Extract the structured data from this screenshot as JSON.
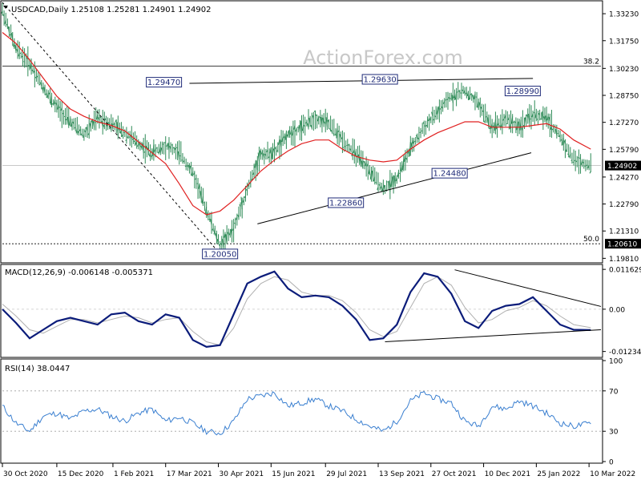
{
  "chart_data": [
    {
      "type": "line",
      "subtype": "ohlc-bars",
      "panel": "price",
      "symbol": "USDCAD",
      "timeframe": "Daily",
      "header_ohlc": [
        "1.25108",
        "1.25281",
        "1.24901",
        "1.24902"
      ],
      "title": "USDCAD,Daily 1.25108 1.25281 1.24901 1.24902",
      "watermark": "ActionForex.com",
      "ylim": [
        1.1965,
        1.3385
      ],
      "y_ticks": [
        "1.33230",
        "1.31750",
        "1.30230",
        "1.28750",
        "1.27270",
        "1.25790",
        "1.24270",
        "1.22790",
        "1.21310",
        "1.19810"
      ],
      "x_ticks": [
        "30 Oct 2020",
        "15 Dec 2020",
        "1 Feb 2021",
        "17 Mar 2021",
        "30 Apr 2021",
        "15 Jun 2021",
        "29 Jul 2021",
        "13 Sep 2021",
        "27 Oct 2021",
        "10 Dec 2021",
        "25 Jan 2022",
        "10 Mar 2022"
      ],
      "last_price": "1.24902",
      "level_label": "1.20610",
      "series": [
        {
          "name": "",
          "x": [
            0,
            8,
            16,
            24,
            32,
            40,
            48,
            56,
            64,
            72,
            80,
            88,
            96,
            104,
            112,
            120,
            128,
            136,
            144,
            152,
            160,
            168,
            176,
            184,
            192,
            200,
            208,
            216,
            224,
            232,
            240,
            248,
            256,
            264,
            272,
            280,
            288,
            296,
            304,
            312,
            320,
            328,
            336,
            346
          ],
          "values": [
            1.334,
            1.313,
            1.305,
            1.292,
            1.281,
            1.273,
            1.266,
            1.275,
            1.272,
            1.267,
            1.261,
            1.256,
            1.26,
            1.256,
            1.245,
            1.225,
            1.205,
            1.214,
            1.236,
            1.255,
            1.256,
            1.266,
            1.27,
            1.275,
            1.272,
            1.263,
            1.255,
            1.246,
            1.236,
            1.242,
            1.258,
            1.27,
            1.278,
            1.287,
            1.29,
            1.283,
            1.27,
            1.275,
            1.27,
            1.277,
            1.275,
            1.265,
            1.252,
            1.249
          ]
        },
        {
          "name": "",
          "x": [
            0,
            8,
            16,
            24,
            32,
            40,
            48,
            56,
            64,
            72,
            80,
            88,
            96,
            104,
            112,
            120,
            128,
            136,
            144,
            152,
            160,
            168,
            176,
            184,
            192,
            200,
            208,
            216,
            224,
            232,
            240,
            248,
            256,
            264,
            272,
            280,
            288,
            296,
            304,
            312,
            320,
            328,
            336,
            346
          ],
          "values": [
            1.322,
            1.316,
            1.307,
            1.297,
            1.287,
            1.28,
            1.276,
            1.273,
            1.271,
            1.268,
            1.262,
            1.256,
            1.25,
            1.239,
            1.227,
            1.222,
            1.224,
            1.23,
            1.238,
            1.246,
            1.252,
            1.257,
            1.261,
            1.263,
            1.263,
            1.258,
            1.254,
            1.252,
            1.251,
            1.252,
            1.258,
            1.263,
            1.267,
            1.27,
            1.273,
            1.273,
            1.27,
            1.27,
            1.27,
            1.271,
            1.272,
            1.269,
            1.263,
            1.258
          ]
        }
      ],
      "annotations": [
        {
          "text": "1.29470",
          "x": 95,
          "y": 1.2947
        },
        {
          "text": "1.29630",
          "x": 222,
          "y": 1.2963
        },
        {
          "text": "1.28990",
          "x": 306,
          "y": 1.2899
        },
        {
          "text": "1.24480",
          "x": 263,
          "y": 1.2448
        },
        {
          "text": "1.22860",
          "x": 202,
          "y": 1.2286
        },
        {
          "text": "1.20050",
          "x": 128,
          "y": 1.2005
        },
        {
          "text": "38.2",
          "y": 1.3035
        },
        {
          "text": "50.0",
          "y": 1.2061
        }
      ],
      "trendlines": [
        {
          "x": [
            0,
            128
          ],
          "y": [
            1.3385,
            1.2005
          ],
          "style": "dashed"
        },
        {
          "x": [
            110,
            312
          ],
          "y": [
            1.2941,
            1.2968
          ],
          "style": "solid"
        },
        {
          "x": [
            150,
            311
          ],
          "y": [
            1.217,
            1.256
          ],
          "style": "solid"
        }
      ],
      "horizontal_lines": [
        1.3035,
        1.2061,
        1.249
      ],
      "grid": false,
      "legend": "none"
    },
    {
      "type": "line",
      "panel": "macd",
      "title": "MACD(12,26,9) -0.006148 -0.005371",
      "ylim": [
        -0.0136,
        0.0126
      ],
      "y_ticks": [
        "0.011629",
        "0.00",
        "-0.012348"
      ],
      "zero_label": "0.00",
      "series": [
        {
          "name": "",
          "x": [
            0,
            8,
            16,
            24,
            32,
            40,
            48,
            56,
            64,
            72,
            80,
            88,
            96,
            104,
            112,
            120,
            128,
            136,
            144,
            152,
            160,
            168,
            176,
            184,
            192,
            200,
            208,
            216,
            224,
            232,
            240,
            248,
            256,
            264,
            272,
            280,
            288,
            296,
            304,
            312,
            320,
            328,
            336,
            346
          ],
          "values": [
            0.0,
            -0.004,
            -0.0085,
            -0.006,
            -0.0035,
            -0.0025,
            -0.0035,
            -0.0045,
            -0.0015,
            -0.001,
            -0.0035,
            -0.0045,
            -0.0015,
            -0.0025,
            -0.009,
            -0.011,
            -0.0105,
            -0.0015,
            0.0075,
            0.0095,
            0.011,
            0.006,
            0.0035,
            0.004,
            0.0035,
            0.001,
            -0.003,
            -0.009,
            -0.0085,
            -0.0045,
            0.005,
            0.0105,
            0.0095,
            0.0045,
            -0.0035,
            -0.0055,
            -0.0005,
            0.001,
            0.0015,
            0.0035,
            -0.0005,
            -0.0045,
            -0.006,
            -0.0061
          ]
        },
        {
          "name": "",
          "x": [
            0,
            8,
            16,
            24,
            32,
            40,
            48,
            56,
            64,
            72,
            80,
            88,
            96,
            104,
            112,
            120,
            128,
            136,
            144,
            152,
            160,
            168,
            176,
            184,
            192,
            200,
            208,
            216,
            224,
            232,
            240,
            248,
            256,
            264,
            272,
            280,
            288,
            296,
            304,
            312,
            320,
            328,
            336,
            346
          ],
          "values": [
            0.0015,
            -0.002,
            -0.006,
            -0.007,
            -0.005,
            -0.003,
            -0.003,
            -0.004,
            -0.003,
            -0.002,
            -0.0025,
            -0.004,
            -0.003,
            -0.0025,
            -0.0065,
            -0.0095,
            -0.0105,
            -0.0055,
            0.003,
            0.0075,
            0.0095,
            0.0085,
            0.005,
            0.004,
            0.004,
            0.0025,
            -0.001,
            -0.006,
            -0.008,
            -0.0065,
            0.0005,
            0.0075,
            0.0095,
            0.007,
            0.0005,
            -0.004,
            -0.003,
            -0.0005,
            0.0005,
            0.0025,
            0.001,
            -0.002,
            -0.0045,
            -0.0054
          ]
        }
      ],
      "trendlines": [
        {
          "x": [
            266,
            352
          ],
          "y": [
            0.0115,
            0.0008
          ]
        },
        {
          "x": [
            225,
            352
          ],
          "y": [
            -0.0095,
            -0.006
          ]
        }
      ],
      "grid": false,
      "legend": "none"
    },
    {
      "type": "line",
      "panel": "rsi",
      "title": "RSI(14) 38.0447",
      "ylim": [
        0,
        100
      ],
      "y_ticks": [
        "100",
        "70",
        "30",
        "0"
      ],
      "levels": [
        70,
        30
      ],
      "series": [
        {
          "name": "",
          "x": [
            0,
            8,
            16,
            24,
            32,
            40,
            48,
            56,
            64,
            72,
            80,
            88,
            96,
            104,
            112,
            120,
            128,
            136,
            144,
            152,
            160,
            168,
            176,
            184,
            192,
            200,
            208,
            216,
            224,
            232,
            240,
            248,
            256,
            264,
            272,
            280,
            288,
            296,
            304,
            312,
            320,
            328,
            336,
            346
          ],
          "values": [
            55,
            38,
            30,
            45,
            48,
            42,
            50,
            52,
            45,
            40,
            48,
            52,
            40,
            44,
            38,
            30,
            28,
            40,
            62,
            65,
            68,
            55,
            58,
            62,
            55,
            50,
            42,
            35,
            30,
            40,
            60,
            68,
            62,
            58,
            40,
            35,
            55,
            52,
            60,
            55,
            48,
            38,
            35,
            38
          ]
        }
      ],
      "grid": false,
      "legend": "none"
    }
  ]
}
